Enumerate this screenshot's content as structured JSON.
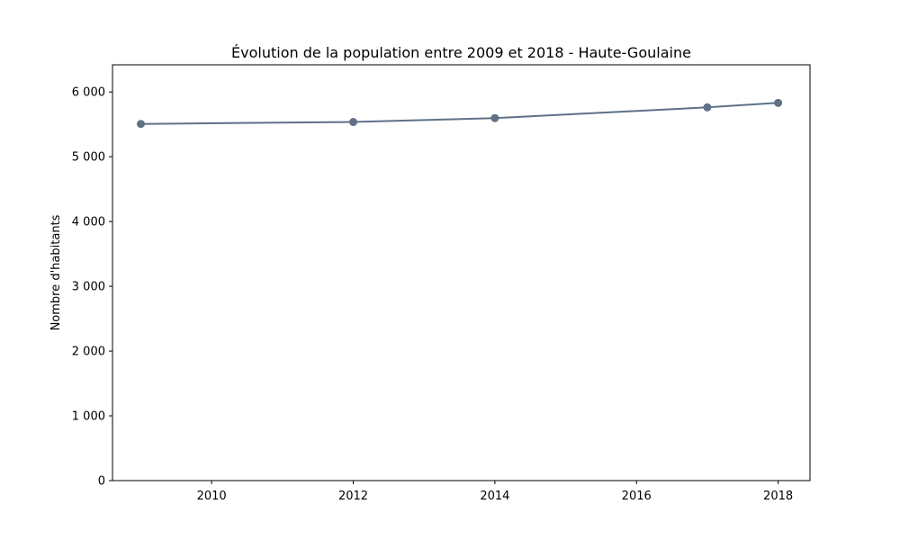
{
  "chart_data": {
    "type": "line",
    "title": "Évolution de la population entre 2009 et 2018 - Haute-Goulaine",
    "xlabel": "",
    "ylabel": "Nombre d'habitants",
    "x": [
      2009,
      2012,
      2014,
      2017,
      2018
    ],
    "series": [
      {
        "values": [
          5507,
          5537,
          5597,
          5763,
          5832
        ]
      }
    ],
    "xlim": [
      2008.6,
      2018.45
    ],
    "ylim": [
      0,
      6420
    ],
    "xticks": [
      2010,
      2012,
      2014,
      2016,
      2018
    ],
    "xtick_labels": [
      "2010",
      "2012",
      "2014",
      "2016",
      "2018"
    ],
    "yticks": [
      0,
      1000,
      2000,
      3000,
      4000,
      5000,
      6000
    ],
    "ytick_labels": [
      "0",
      "1 000",
      "2 000",
      "3 000",
      "4 000",
      "5 000",
      "6 000"
    ],
    "grid": false,
    "line_color": "#5f7186"
  }
}
